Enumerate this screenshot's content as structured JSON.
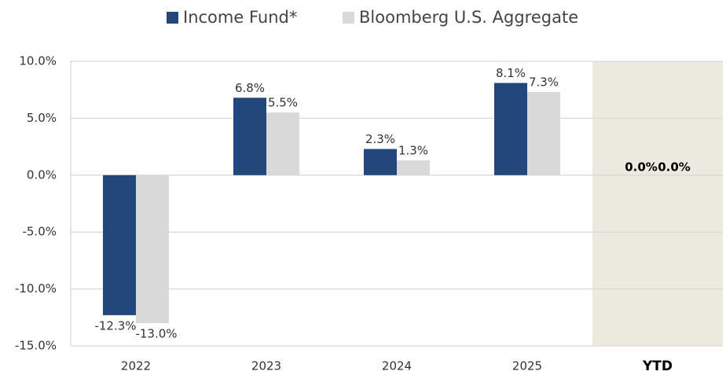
{
  "chart_data": {
    "type": "bar",
    "categories": [
      "2022",
      "2023",
      "2024",
      "2025",
      "YTD"
    ],
    "series": [
      {
        "name": "Income Fund*",
        "color": "#22477a",
        "values": [
          -12.3,
          6.8,
          2.3,
          8.1,
          0
        ],
        "value_labels": [
          "-12.3%",
          "6.8%",
          "2.3%",
          "8.1%",
          "0.0%"
        ]
      },
      {
        "name": "Bloomberg U.S. Aggregate",
        "color": "#d9d9d9",
        "values": [
          -13.0,
          5.5,
          1.3,
          7.3,
          0
        ],
        "value_labels": [
          "-13.0%",
          "5.5%",
          "1.3%",
          "7.3%",
          "0.0%"
        ]
      }
    ],
    "ylim": [
      -15,
      10
    ],
    "yticks": [
      {
        "value": -15,
        "label": "-15.0%"
      },
      {
        "value": -10,
        "label": "-10.0%"
      },
      {
        "value": -5,
        "label": "-5.0%"
      },
      {
        "value": 0,
        "label": "0.0%"
      },
      {
        "value": 5,
        "label": "5.0%"
      },
      {
        "value": 10,
        "label": "10.0%"
      }
    ],
    "grid": true,
    "legend": "top",
    "highlight": {
      "index": 4,
      "color": "#ece9df"
    }
  }
}
